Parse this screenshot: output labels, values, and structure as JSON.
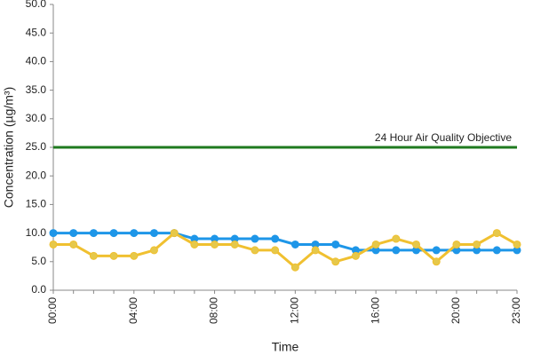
{
  "chart_data": {
    "type": "line",
    "x_label": "Time",
    "y_label": "Concentration (µg/m³)",
    "categories": [
      "00:00",
      null,
      null,
      null,
      "04:00",
      null,
      null,
      null,
      "08:00",
      null,
      null,
      null,
      "12:00",
      null,
      null,
      null,
      "16:00",
      null,
      null,
      null,
      "20:00",
      null,
      null,
      "23:00"
    ],
    "series": [
      {
        "color": "#1e96e8",
        "marker_color": "#1e96e8",
        "values": [
          10,
          10,
          10,
          10,
          10,
          10,
          10,
          9,
          9,
          9,
          9,
          9,
          8,
          8,
          8,
          7,
          7,
          7,
          7,
          7,
          7,
          7,
          7,
          7
        ]
      },
      {
        "color": "#f0c030",
        "marker_color": "#e6c84a",
        "values": [
          8,
          8,
          6,
          6,
          6,
          7,
          10,
          8,
          8,
          8,
          7,
          7,
          4,
          7,
          5,
          6,
          8,
          9,
          8,
          5,
          8,
          8,
          10,
          8
        ]
      }
    ],
    "reference_line": {
      "value": 25,
      "label": "24 Hour Air Quality Objective",
      "color": "#1f7a1f"
    },
    "ylim": [
      0,
      50
    ],
    "yticks": [
      {
        "value": 0,
        "label": "0.0"
      },
      {
        "value": 5,
        "label": "5.0"
      },
      {
        "value": 10,
        "label": "10.0"
      },
      {
        "value": 15,
        "label": "15.0"
      },
      {
        "value": 20,
        "label": "20.0"
      },
      {
        "value": 25,
        "label": "25.0"
      },
      {
        "value": 30,
        "label": "30.0"
      },
      {
        "value": 35,
        "label": "35.0"
      },
      {
        "value": 40,
        "label": "40.0"
      },
      {
        "value": 45,
        "label": "45.0"
      },
      {
        "value": 50,
        "label": "50.0"
      }
    ],
    "grid": false
  }
}
